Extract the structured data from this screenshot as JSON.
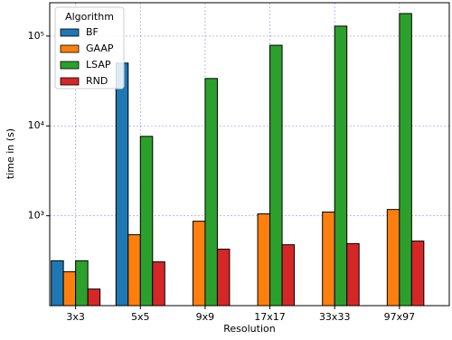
{
  "chart_data": {
    "type": "bar",
    "x_label": "Resolution",
    "y_label": "time in (s)",
    "categories": [
      "3x3",
      "5x5",
      "9x9",
      "17x17",
      "33x33",
      "97x97"
    ],
    "series": [
      {
        "name": "BF",
        "color": "#1f77b4",
        "values": [
          316,
          50000,
          null,
          null,
          null,
          null
        ]
      },
      {
        "name": "GAAP",
        "color": "#ff7f0e",
        "values": [
          238,
          615,
          870,
          1050,
          1100,
          1175
        ]
      },
      {
        "name": "LSAP",
        "color": "#2ca02c",
        "values": [
          316,
          7650,
          33700,
          79000,
          129000,
          178000
        ]
      },
      {
        "name": "RND",
        "color": "#d62728",
        "values": [
          153,
          307,
          425,
          476,
          490,
          523
        ]
      }
    ],
    "log_scale": true,
    "ylim": [
      100,
      235000
    ],
    "yticks": [
      {
        "value": 1000,
        "label": "10³"
      },
      {
        "value": 10000,
        "label": "10⁴"
      },
      {
        "value": 100000,
        "label": "10⁵"
      }
    ],
    "grid": true,
    "legend_title": "Algorithm",
    "legend_position": "upper-left"
  }
}
